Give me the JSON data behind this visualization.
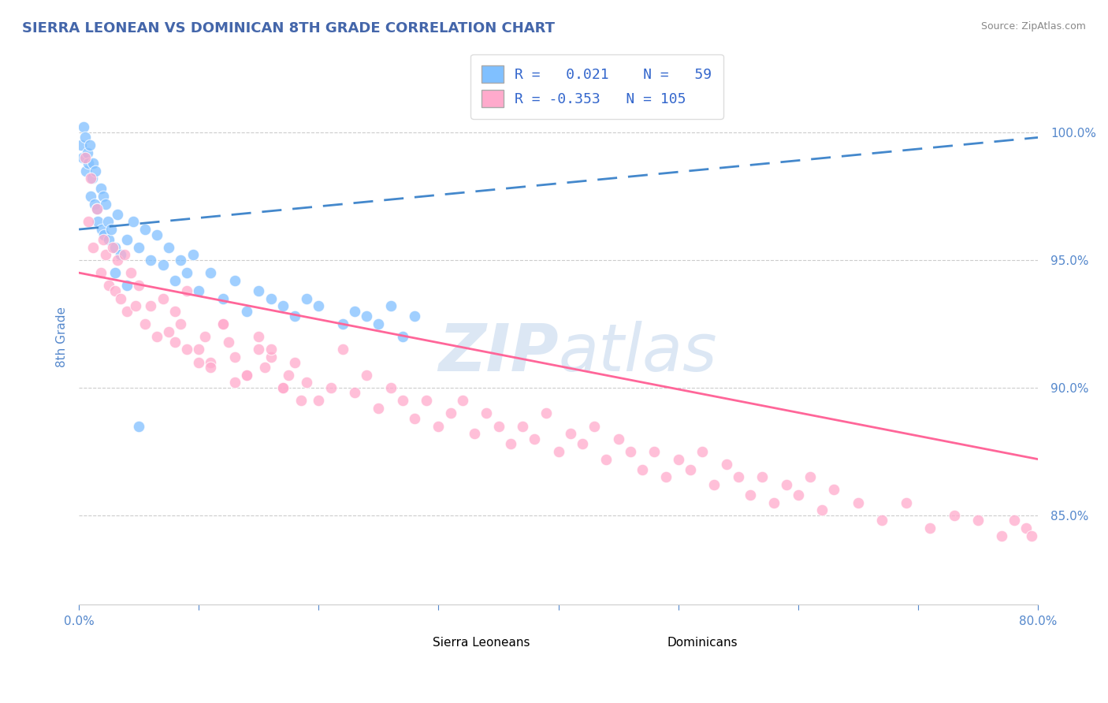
{
  "title": "SIERRA LEONEAN VS DOMINICAN 8TH GRADE CORRELATION CHART",
  "source": "Source: ZipAtlas.com",
  "ylabel": "8th Grade",
  "yticks": [
    85.0,
    90.0,
    95.0,
    100.0
  ],
  "ytick_labels": [
    "85.0%",
    "90.0%",
    "95.0%",
    "100.0%"
  ],
  "xmin": 0.0,
  "xmax": 80.0,
  "ymin": 81.5,
  "ymax": 102.5,
  "r_sierra": 0.021,
  "n_sierra": 59,
  "r_dominican": -0.353,
  "n_dominican": 105,
  "sierra_color": "#80c0ff",
  "dominican_color": "#ffaacc",
  "trendline_sierra_color": "#4488cc",
  "trendline_dominican_color": "#ff6699",
  "grid_color": "#cccccc",
  "title_color": "#4466aa",
  "axis_label_color": "#5588cc",
  "watermark_color": "#c5d8ee",
  "legend_r_color": "#3366cc",
  "sierra_trendline_x": [
    0.0,
    80.0
  ],
  "sierra_trendline_y": [
    96.2,
    99.8
  ],
  "dominican_trendline_x": [
    0.0,
    80.0
  ],
  "dominican_trendline_y": [
    94.5,
    87.2
  ],
  "sierra_points_x": [
    0.2,
    0.3,
    0.4,
    0.5,
    0.6,
    0.7,
    0.8,
    0.9,
    1.0,
    1.1,
    1.2,
    1.3,
    1.4,
    1.5,
    1.6,
    1.8,
    1.9,
    2.0,
    2.1,
    2.2,
    2.4,
    2.5,
    2.7,
    3.0,
    3.2,
    3.5,
    4.0,
    4.5,
    5.0,
    5.5,
    6.0,
    6.5,
    7.0,
    7.5,
    8.0,
    8.5,
    9.0,
    9.5,
    10.0,
    11.0,
    12.0,
    13.0,
    14.0,
    15.0,
    16.0,
    17.0,
    18.0,
    19.0,
    20.0,
    22.0,
    23.0,
    24.0,
    25.0,
    26.0,
    27.0,
    28.0,
    3.0,
    4.0,
    5.0
  ],
  "sierra_points_y": [
    99.5,
    99.0,
    100.2,
    99.8,
    98.5,
    99.2,
    98.8,
    99.5,
    97.5,
    98.2,
    98.8,
    97.2,
    98.5,
    97.0,
    96.5,
    97.8,
    96.2,
    97.5,
    96.0,
    97.2,
    96.5,
    95.8,
    96.2,
    95.5,
    96.8,
    95.2,
    95.8,
    96.5,
    95.5,
    96.2,
    95.0,
    96.0,
    94.8,
    95.5,
    94.2,
    95.0,
    94.5,
    95.2,
    93.8,
    94.5,
    93.5,
    94.2,
    93.0,
    93.8,
    93.5,
    93.2,
    92.8,
    93.5,
    93.2,
    92.5,
    93.0,
    92.8,
    92.5,
    93.2,
    92.0,
    92.8,
    94.5,
    94.0,
    88.5
  ],
  "dominican_points_x": [
    0.5,
    0.8,
    1.0,
    1.2,
    1.5,
    1.8,
    2.0,
    2.2,
    2.5,
    2.8,
    3.0,
    3.2,
    3.5,
    3.8,
    4.0,
    4.3,
    4.7,
    5.0,
    5.5,
    6.0,
    6.5,
    7.0,
    7.5,
    8.0,
    8.5,
    9.0,
    10.0,
    10.5,
    11.0,
    12.0,
    12.5,
    13.0,
    14.0,
    15.0,
    15.5,
    16.0,
    17.0,
    17.5,
    18.0,
    18.5,
    19.0,
    20.0,
    21.0,
    22.0,
    23.0,
    24.0,
    25.0,
    26.0,
    27.0,
    28.0,
    29.0,
    30.0,
    31.0,
    32.0,
    33.0,
    34.0,
    35.0,
    36.0,
    37.0,
    38.0,
    39.0,
    40.0,
    41.0,
    42.0,
    43.0,
    44.0,
    45.0,
    46.0,
    47.0,
    48.0,
    49.0,
    50.0,
    51.0,
    52.0,
    53.0,
    54.0,
    55.0,
    56.0,
    57.0,
    58.0,
    59.0,
    60.0,
    61.0,
    62.0,
    63.0,
    65.0,
    67.0,
    69.0,
    71.0,
    73.0,
    75.0,
    77.0,
    78.0,
    79.0,
    79.5,
    8.0,
    9.0,
    10.0,
    11.0,
    12.0,
    13.0,
    14.0,
    15.0,
    16.0,
    17.0
  ],
  "dominican_points_y": [
    99.0,
    96.5,
    98.2,
    95.5,
    97.0,
    94.5,
    95.8,
    95.2,
    94.0,
    95.5,
    93.8,
    95.0,
    93.5,
    95.2,
    93.0,
    94.5,
    93.2,
    94.0,
    92.5,
    93.2,
    92.0,
    93.5,
    92.2,
    93.0,
    92.5,
    93.8,
    91.5,
    92.0,
    91.0,
    92.5,
    91.8,
    91.2,
    90.5,
    91.5,
    90.8,
    91.2,
    90.0,
    90.5,
    91.0,
    89.5,
    90.2,
    89.5,
    90.0,
    91.5,
    89.8,
    90.5,
    89.2,
    90.0,
    89.5,
    88.8,
    89.5,
    88.5,
    89.0,
    89.5,
    88.2,
    89.0,
    88.5,
    87.8,
    88.5,
    88.0,
    89.0,
    87.5,
    88.2,
    87.8,
    88.5,
    87.2,
    88.0,
    87.5,
    86.8,
    87.5,
    86.5,
    87.2,
    86.8,
    87.5,
    86.2,
    87.0,
    86.5,
    85.8,
    86.5,
    85.5,
    86.2,
    85.8,
    86.5,
    85.2,
    86.0,
    85.5,
    84.8,
    85.5,
    84.5,
    85.0,
    84.8,
    84.2,
    84.8,
    84.5,
    84.2,
    91.8,
    91.5,
    91.0,
    90.8,
    92.5,
    90.2,
    90.5,
    92.0,
    91.5,
    90.0
  ]
}
